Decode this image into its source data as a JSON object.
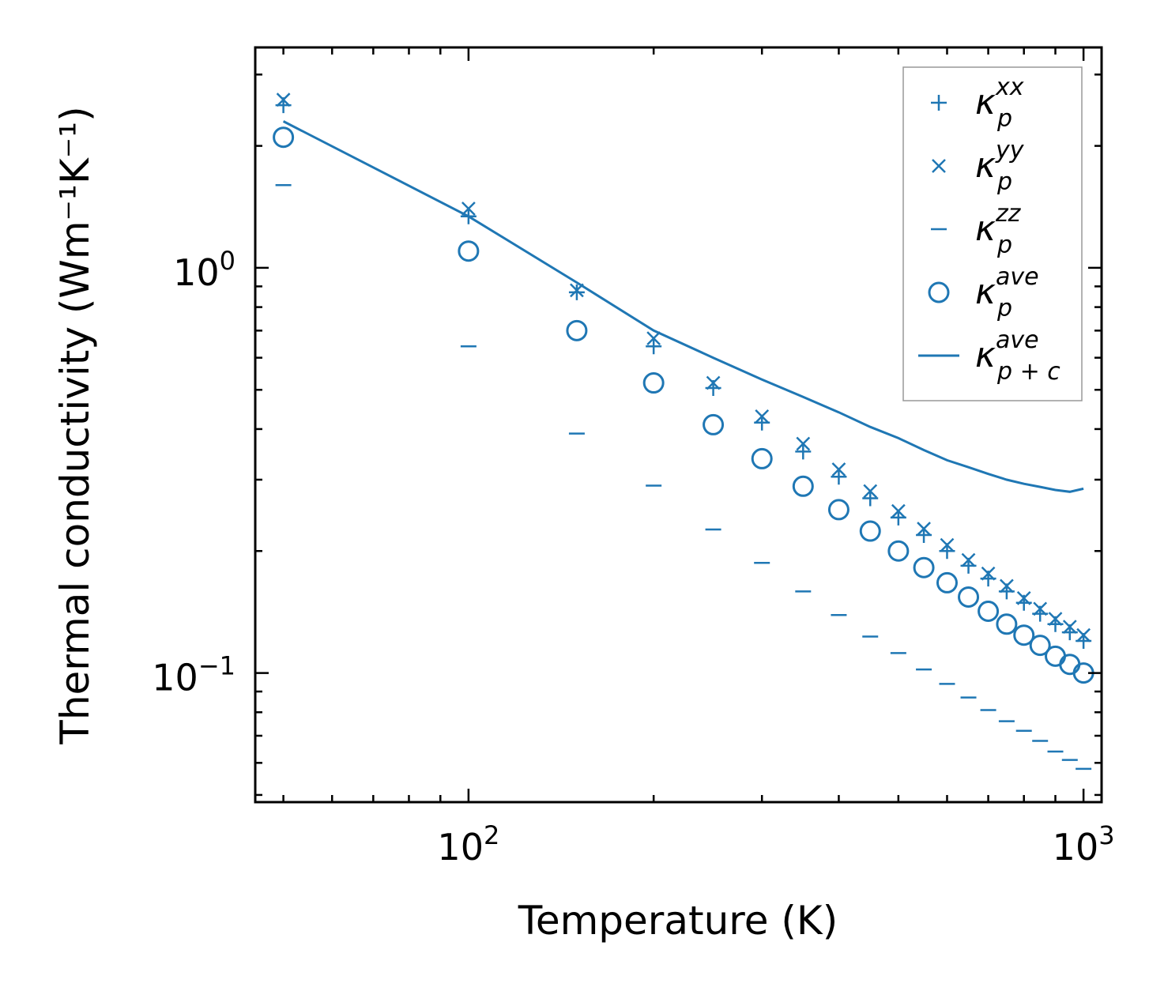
{
  "chart_data": {
    "type": "scatter",
    "xscale": "log",
    "yscale": "log",
    "xlabel": "Temperature (K)",
    "ylabel": "Thermal conductivity (Wm⁻¹K⁻¹)",
    "xlim": [
      45,
      1070
    ],
    "ylim": [
      0.048,
      3.5
    ],
    "x_ticks": [
      {
        "value": 100,
        "base": "10",
        "exp": "2"
      },
      {
        "value": 1000,
        "base": "10",
        "exp": "3"
      }
    ],
    "y_ticks": [
      {
        "value": 0.1,
        "base": "10",
        "exp": "−1"
      },
      {
        "value": 1,
        "base": "10",
        "exp": "0"
      }
    ],
    "color": "#1f77b4",
    "x": [
      50,
      100,
      150,
      200,
      250,
      300,
      350,
      400,
      450,
      500,
      550,
      600,
      650,
      700,
      750,
      800,
      850,
      900,
      950,
      1000
    ],
    "series": [
      {
        "name": "κ_p^xx",
        "marker": "plus",
        "legend_base": "κ",
        "legend_sup": "xx",
        "legend_sub": "p",
        "values": [
          2.52,
          1.34,
          0.87,
          0.64,
          0.505,
          0.415,
          0.352,
          0.305,
          0.27,
          0.242,
          0.219,
          0.2,
          0.184,
          0.171,
          0.159,
          0.149,
          0.14,
          0.132,
          0.126,
          0.12
        ]
      },
      {
        "name": "κ_p^yy",
        "marker": "x",
        "legend_base": "κ",
        "legend_sup": "yy",
        "legend_sub": "p",
        "values": [
          2.6,
          1.4,
          0.88,
          0.67,
          0.52,
          0.43,
          0.368,
          0.318,
          0.281,
          0.251,
          0.227,
          0.207,
          0.19,
          0.176,
          0.164,
          0.153,
          0.144,
          0.136,
          0.13,
          0.124
        ]
      },
      {
        "name": "κ_p^zz",
        "marker": "hline",
        "legend_base": "κ",
        "legend_sup": "zz",
        "legend_sub": "p",
        "values": [
          1.6,
          0.64,
          0.39,
          0.29,
          0.226,
          0.187,
          0.159,
          0.139,
          0.123,
          0.112,
          0.102,
          0.094,
          0.087,
          0.081,
          0.076,
          0.072,
          0.068,
          0.064,
          0.061,
          0.058
        ]
      },
      {
        "name": "κ_p^ave",
        "marker": "circle",
        "legend_base": "κ",
        "legend_sup": "ave",
        "legend_sub": "p",
        "values": [
          2.1,
          1.1,
          0.7,
          0.52,
          0.41,
          0.338,
          0.289,
          0.253,
          0.224,
          0.2,
          0.182,
          0.167,
          0.154,
          0.142,
          0.132,
          0.124,
          0.117,
          0.11,
          0.105,
          0.1
        ]
      },
      {
        "name": "κ_p+c^ave",
        "marker": "line",
        "legend_base": "κ",
        "legend_sup": "ave",
        "legend_sub": "p + c",
        "values": [
          2.3,
          1.34,
          0.92,
          0.7,
          0.6,
          0.53,
          0.48,
          0.44,
          0.405,
          0.38,
          0.355,
          0.335,
          0.322,
          0.31,
          0.3,
          0.293,
          0.288,
          0.283,
          0.28,
          0.285
        ]
      }
    ]
  }
}
